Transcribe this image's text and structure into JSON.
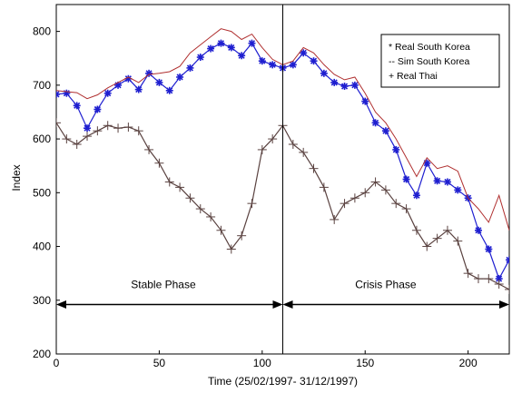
{
  "chart_data": {
    "type": "line",
    "title": "",
    "xlabel": "Time (25/02/1997- 31/12/1997)",
    "ylabel": "Index",
    "xlim": [
      0,
      220
    ],
    "ylim": [
      200,
      850
    ],
    "x_ticks": [
      0,
      50,
      100,
      150,
      200
    ],
    "y_ticks": [
      200,
      300,
      400,
      500,
      600,
      700,
      800
    ],
    "grid": false,
    "legend_position": "top-right",
    "series": [
      {
        "name": "Real South Korea",
        "legend_label": "* Real South Korea",
        "color": "#1f1fd0",
        "marker": "*",
        "x": [
          0,
          5,
          10,
          15,
          20,
          25,
          30,
          35,
          40,
          45,
          50,
          55,
          60,
          65,
          70,
          75,
          80,
          85,
          90,
          95,
          100,
          105,
          110,
          115,
          120,
          125,
          130,
          135,
          140,
          145,
          150,
          155,
          160,
          165,
          170,
          175,
          180,
          185,
          190,
          195,
          200,
          205,
          210,
          215,
          220
        ],
        "y": [
          683,
          685,
          662,
          620,
          655,
          685,
          700,
          712,
          692,
          722,
          705,
          690,
          715,
          732,
          752,
          768,
          778,
          770,
          755,
          778,
          745,
          738,
          732,
          738,
          760,
          745,
          722,
          705,
          698,
          700,
          670,
          630,
          615,
          580,
          525,
          495,
          555,
          522,
          520,
          505,
          490,
          430,
          395,
          340,
          375
        ]
      },
      {
        "name": "Sim South Korea",
        "legend_label": "-- Sim South Korea",
        "color": "#b03030",
        "marker": "",
        "x": [
          0,
          5,
          10,
          15,
          20,
          25,
          30,
          35,
          40,
          45,
          50,
          55,
          60,
          65,
          70,
          75,
          80,
          85,
          90,
          95,
          100,
          105,
          110,
          115,
          120,
          125,
          130,
          135,
          140,
          145,
          150,
          155,
          160,
          165,
          170,
          175,
          180,
          185,
          190,
          195,
          200,
          205,
          210,
          215,
          220
        ],
        "y": [
          690,
          688,
          686,
          675,
          682,
          695,
          705,
          715,
          705,
          720,
          722,
          725,
          735,
          760,
          775,
          790,
          805,
          800,
          785,
          795,
          770,
          748,
          738,
          745,
          770,
          760,
          738,
          720,
          710,
          715,
          685,
          650,
          630,
          600,
          565,
          530,
          565,
          545,
          550,
          540,
          490,
          470,
          445,
          495,
          430
        ]
      },
      {
        "name": "Real Thai",
        "legend_label": "+ Real Thai",
        "color": "#5a4240",
        "marker": "+",
        "x": [
          0,
          5,
          10,
          15,
          20,
          25,
          30,
          35,
          40,
          45,
          50,
          55,
          60,
          65,
          70,
          75,
          80,
          85,
          90,
          95,
          100,
          105,
          110,
          115,
          120,
          125,
          130,
          135,
          140,
          145,
          150,
          155,
          160,
          165,
          170,
          175,
          180,
          185,
          190,
          195,
          200,
          205,
          210,
          215,
          220
        ],
        "y": [
          630,
          600,
          590,
          605,
          615,
          625,
          620,
          622,
          615,
          580,
          555,
          520,
          510,
          490,
          470,
          455,
          430,
          395,
          420,
          480,
          580,
          600,
          625,
          590,
          575,
          545,
          510,
          450,
          480,
          490,
          500,
          520,
          505,
          480,
          470,
          430,
          400,
          415,
          430,
          410,
          350,
          340,
          340,
          330,
          320
        ]
      }
    ],
    "annotations": [
      {
        "text": "Stable Phase",
        "x": 52,
        "y": 322
      },
      {
        "text": "Crisis Phase",
        "x": 160,
        "y": 322
      }
    ],
    "arrows": [
      {
        "from": 0,
        "to": 110,
        "y": 292
      },
      {
        "from": 110,
        "to": 220,
        "y": 292
      }
    ],
    "divider_x": 110
  }
}
